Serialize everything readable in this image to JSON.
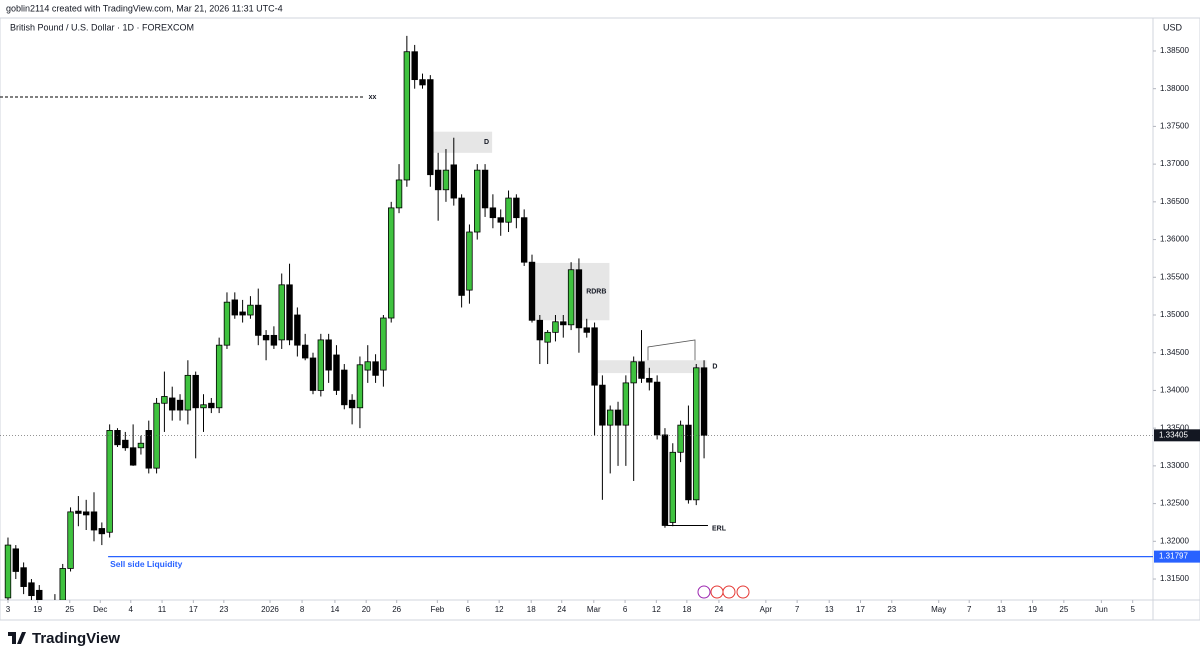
{
  "header": {
    "credit": "goblin2114 created with TradingView.com, Mar 21, 2026 11:31 UTC-4",
    "symbol": "British Pound / U.S. Dollar · 1D · FOREXCOM",
    "currency": "USD"
  },
  "footer": {
    "brand": "TradingView"
  },
  "chart_data": {
    "type": "candlestick",
    "up_color": "#3fc23f",
    "down_color": "#000000",
    "candles": [
      [
        1.3125,
        1.3205,
        1.3115,
        1.3195
      ],
      [
        1.319,
        1.3195,
        1.315,
        1.316
      ],
      [
        1.3165,
        1.3172,
        1.313,
        1.314
      ],
      [
        1.3145,
        1.315,
        1.3118,
        1.3128
      ],
      [
        1.3135,
        1.3142,
        1.31,
        1.3108
      ],
      [
        1.311,
        1.3118,
        1.309,
        1.3098
      ],
      [
        1.31,
        1.313,
        1.3092,
        1.312
      ],
      [
        1.3122,
        1.317,
        1.3115,
        1.3164
      ],
      [
        1.3164,
        1.3245,
        1.316,
        1.3239
      ],
      [
        1.324,
        1.326,
        1.322,
        1.3237
      ],
      [
        1.3239,
        1.3255,
        1.3215,
        1.3235
      ],
      [
        1.3239,
        1.3265,
        1.32,
        1.3215
      ],
      [
        1.3217,
        1.3225,
        1.3195,
        1.321
      ],
      [
        1.3212,
        1.3355,
        1.3205,
        1.3347
      ],
      [
        1.3347,
        1.335,
        1.3325,
        1.3328
      ],
      [
        1.3334,
        1.3345,
        1.332,
        1.3324
      ],
      [
        1.3324,
        1.3355,
        1.33,
        1.3301
      ],
      [
        1.3324,
        1.334,
        1.3315,
        1.333
      ],
      [
        1.3347,
        1.336,
        1.329,
        1.3297
      ],
      [
        1.3297,
        1.339,
        1.329,
        1.3383
      ],
      [
        1.3383,
        1.3425,
        1.3345,
        1.3392
      ],
      [
        1.339,
        1.3405,
        1.336,
        1.3374
      ],
      [
        1.3387,
        1.3395,
        1.336,
        1.3374
      ],
      [
        1.3374,
        1.344,
        1.3355,
        1.342
      ],
      [
        1.342,
        1.3425,
        1.331,
        1.3377
      ],
      [
        1.3377,
        1.3395,
        1.3345,
        1.3381
      ],
      [
        1.3383,
        1.339,
        1.337,
        1.3377
      ],
      [
        1.3377,
        1.347,
        1.337,
        1.346
      ],
      [
        1.346,
        1.353,
        1.3455,
        1.3517
      ],
      [
        1.352,
        1.353,
        1.3495,
        1.35
      ],
      [
        1.3504,
        1.352,
        1.349,
        1.35
      ],
      [
        1.35,
        1.3525,
        1.3495,
        1.3513
      ],
      [
        1.3513,
        1.3535,
        1.346,
        1.3473
      ],
      [
        1.3473,
        1.348,
        1.344,
        1.3467
      ],
      [
        1.3473,
        1.3485,
        1.3455,
        1.346
      ],
      [
        1.3467,
        1.3555,
        1.3455,
        1.354
      ],
      [
        1.354,
        1.3568,
        1.346,
        1.3467
      ],
      [
        1.35,
        1.351,
        1.3445,
        1.346
      ],
      [
        1.346,
        1.3475,
        1.344,
        1.3443
      ],
      [
        1.3443,
        1.345,
        1.3395,
        1.34
      ],
      [
        1.34,
        1.3475,
        1.3392,
        1.3467
      ],
      [
        1.3467,
        1.3475,
        1.341,
        1.3427
      ],
      [
        1.3447,
        1.346,
        1.3394,
        1.34
      ],
      [
        1.3427,
        1.3435,
        1.3375,
        1.3381
      ],
      [
        1.3387,
        1.3395,
        1.3355,
        1.3377
      ],
      [
        1.3377,
        1.3445,
        1.335,
        1.3434
      ],
      [
        1.3427,
        1.346,
        1.341,
        1.3438
      ],
      [
        1.3438,
        1.3448,
        1.341,
        1.342
      ],
      [
        1.3427,
        1.35,
        1.3405,
        1.3496
      ],
      [
        1.3496,
        1.365,
        1.349,
        1.3642
      ],
      [
        1.3642,
        1.37,
        1.3635,
        1.3679
      ],
      [
        1.3679,
        1.387,
        1.367,
        1.3849
      ],
      [
        1.3849,
        1.3858,
        1.38,
        1.3812
      ],
      [
        1.3812,
        1.382,
        1.38,
        1.3805
      ],
      [
        1.3812,
        1.3818,
        1.367,
        1.3686
      ],
      [
        1.3692,
        1.3715,
        1.3625,
        1.3666
      ],
      [
        1.3666,
        1.372,
        1.365,
        1.3692
      ],
      [
        1.3699,
        1.3735,
        1.3645,
        1.3655
      ],
      [
        1.3655,
        1.366,
        1.351,
        1.3526
      ],
      [
        1.3533,
        1.362,
        1.3515,
        1.361
      ],
      [
        1.361,
        1.37,
        1.36,
        1.3692
      ],
      [
        1.3692,
        1.37,
        1.363,
        1.3642
      ],
      [
        1.3642,
        1.366,
        1.3615,
        1.3629
      ],
      [
        1.3629,
        1.364,
        1.3605,
        1.3623
      ],
      [
        1.3623,
        1.3665,
        1.361,
        1.3655
      ],
      [
        1.3655,
        1.366,
        1.3615,
        1.3629
      ],
      [
        1.3629,
        1.364,
        1.3565,
        1.357
      ],
      [
        1.357,
        1.358,
        1.349,
        1.3493
      ],
      [
        1.3493,
        1.35,
        1.3435,
        1.3467
      ],
      [
        1.3464,
        1.348,
        1.3435,
        1.3477
      ],
      [
        1.3477,
        1.35,
        1.3465,
        1.3491
      ],
      [
        1.3491,
        1.35,
        1.347,
        1.3487
      ],
      [
        1.3487,
        1.357,
        1.348,
        1.356
      ],
      [
        1.356,
        1.3575,
        1.345,
        1.3483
      ],
      [
        1.3483,
        1.3495,
        1.347,
        1.3477
      ],
      [
        1.3483,
        1.349,
        1.334,
        1.3407
      ],
      [
        1.3407,
        1.342,
        1.3255,
        1.3354
      ],
      [
        1.3354,
        1.338,
        1.329,
        1.3374
      ],
      [
        1.3374,
        1.3385,
        1.33,
        1.3354
      ],
      [
        1.3354,
        1.342,
        1.33,
        1.341
      ],
      [
        1.341,
        1.3445,
        1.328,
        1.3438
      ],
      [
        1.3438,
        1.348,
        1.341,
        1.3416
      ],
      [
        1.3416,
        1.343,
        1.34,
        1.3411
      ],
      [
        1.3411,
        1.342,
        1.3335,
        1.3341
      ],
      [
        1.3341,
        1.335,
        1.3218,
        1.3221
      ],
      [
        1.3225,
        1.333,
        1.322,
        1.3318
      ],
      [
        1.3318,
        1.336,
        1.3305,
        1.3354
      ],
      [
        1.3354,
        1.338,
        1.325,
        1.3255
      ],
      [
        1.3255,
        1.3435,
        1.3248,
        1.343
      ],
      [
        1.343,
        1.344,
        1.331,
        1.33405
      ]
    ],
    "xlim": [
      -1.02,
      146.4
    ],
    "xticks": [
      {
        "value": 0,
        "label": "3"
      },
      {
        "value": 3.8,
        "label": "19"
      },
      {
        "value": 7.9,
        "label": "25"
      },
      {
        "value": 11.8,
        "label": "Dec"
      },
      {
        "value": 15.7,
        "label": "4"
      },
      {
        "value": 19.7,
        "label": "11"
      },
      {
        "value": 23.7,
        "label": "17"
      },
      {
        "value": 27.6,
        "label": "23"
      },
      {
        "value": 33.5,
        "label": "2026"
      },
      {
        "value": 37.6,
        "label": "8"
      },
      {
        "value": 41.8,
        "label": "14"
      },
      {
        "value": 45.8,
        "label": "20"
      },
      {
        "value": 49.7,
        "label": "26"
      },
      {
        "value": 54.9,
        "label": "Feb"
      },
      {
        "value": 58.8,
        "label": "6"
      },
      {
        "value": 62.8,
        "label": "12"
      },
      {
        "value": 66.9,
        "label": "18"
      },
      {
        "value": 70.8,
        "label": "24"
      },
      {
        "value": 74.9,
        "label": "Mar"
      },
      {
        "value": 78.9,
        "label": "6"
      },
      {
        "value": 82.9,
        "label": "12"
      },
      {
        "value": 86.8,
        "label": "18"
      },
      {
        "value": 90.9,
        "label": "24"
      },
      {
        "value": 96.9,
        "label": "Apr"
      },
      {
        "value": 100.9,
        "label": "7"
      },
      {
        "value": 105,
        "label": "13"
      },
      {
        "value": 109,
        "label": "17"
      },
      {
        "value": 113,
        "label": "23"
      },
      {
        "value": 119,
        "label": "May"
      },
      {
        "value": 122.9,
        "label": "7"
      },
      {
        "value": 127,
        "label": "13"
      },
      {
        "value": 131,
        "label": "19"
      },
      {
        "value": 135,
        "label": "25"
      },
      {
        "value": 139.8,
        "label": "Jun"
      },
      {
        "value": 143.8,
        "label": "5"
      }
    ],
    "ylim": [
      1.31222,
      1.38937
    ],
    "yticks": [
      {
        "value": 1.315,
        "label": "1.31500"
      },
      {
        "value": 1.32,
        "label": "1.32000"
      },
      {
        "value": 1.325,
        "label": "1.32500"
      },
      {
        "value": 1.33,
        "label": "1.33000"
      },
      {
        "value": 1.335,
        "label": "1.33500"
      },
      {
        "value": 1.34,
        "label": "1.34000"
      },
      {
        "value": 1.345,
        "label": "1.34500"
      },
      {
        "value": 1.35,
        "label": "1.35000"
      },
      {
        "value": 1.355,
        "label": "1.35500"
      },
      {
        "value": 1.36,
        "label": "1.36000"
      },
      {
        "value": 1.365,
        "label": "1.36500"
      },
      {
        "value": 1.37,
        "label": "1.37000"
      },
      {
        "value": 1.375,
        "label": "1.37500"
      },
      {
        "value": 1.38,
        "label": "1.38000"
      },
      {
        "value": 1.385,
        "label": "1.38500"
      }
    ],
    "levels": [
      {
        "label": "xx",
        "value": 1.3789,
        "x": [
          -1.02,
          45.6
        ]
      },
      {
        "label": "ERL",
        "value": 1.3221,
        "x": [
          84.2,
          89.5
        ]
      }
    ],
    "zones": [
      {
        "label": "D",
        "top": 1.3743,
        "bottom": 1.3715,
        "x": [
          54.2,
          61.9
        ]
      },
      {
        "label": "RDRB",
        "top": 1.3569,
        "bottom": 1.3493,
        "x": [
          67.1,
          76.9
        ]
      },
      {
        "label": "D",
        "top": 1.344,
        "bottom": 1.3423,
        "x": [
          75.4,
          89.3
        ]
      }
    ],
    "sell_side": {
      "label": "Sell side Liquidity",
      "value": 1.31797,
      "x_start": 12.8,
      "color": "#2962ff"
    }
  }
}
